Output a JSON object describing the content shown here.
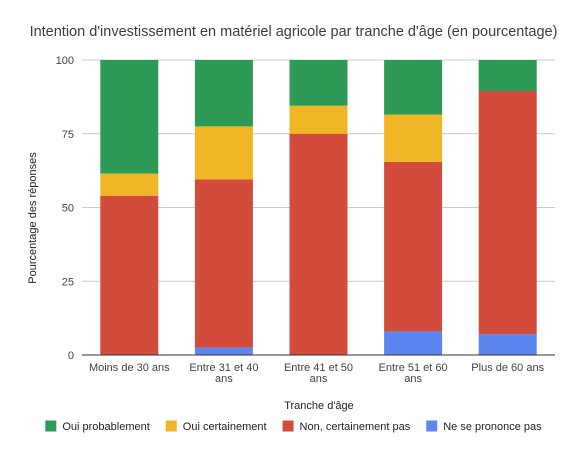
{
  "chart_data": {
    "type": "bar",
    "stacked": true,
    "title": "Intention d'investissement en matériel agricole par tranche d'âge (en pourcentage)",
    "xlabel": "Tranche d'âge",
    "ylabel": "Pourcentage des réponses",
    "ylim": [
      0,
      100
    ],
    "yticks": [
      0,
      25,
      50,
      75,
      100
    ],
    "categories": [
      [
        "Moins de 30 ans"
      ],
      [
        "Entre 31 et 40",
        "ans"
      ],
      [
        "Entre 41 et 50",
        "ans"
      ],
      [
        "Entre 51 et 60",
        "ans"
      ],
      [
        "Plus de 60 ans"
      ]
    ],
    "series": [
      {
        "name": "Ne se prononce pas",
        "color": "#5b86f0",
        "values": [
          0,
          2.5,
          0,
          8,
          7
        ]
      },
      {
        "name": "Non, certainement pas",
        "color": "#d34c3b",
        "values": [
          54,
          57,
          75,
          57.5,
          82.5
        ]
      },
      {
        "name": "Oui certainement",
        "color": "#f0b625",
        "values": [
          7.5,
          18,
          9.5,
          16,
          0
        ]
      },
      {
        "name": "Oui probablement",
        "color": "#2d9b55",
        "values": [
          38.5,
          22.5,
          15.5,
          18.5,
          10.5
        ]
      }
    ],
    "legend_order": [
      "Oui probablement",
      "Oui certainement",
      "Non, certainement pas",
      "Ne se prononce pas"
    ],
    "legend_position": "bottom",
    "grid": true
  }
}
